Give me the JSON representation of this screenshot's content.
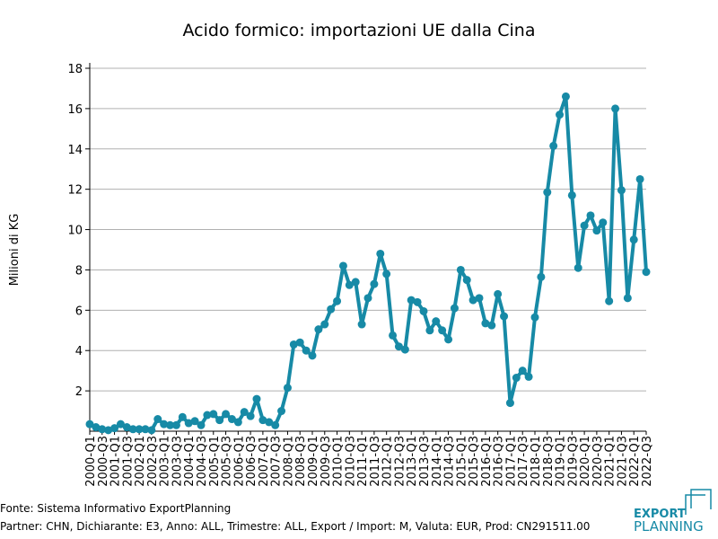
{
  "chart_data": {
    "type": "line",
    "title": "Acido formico: importazioni UE dalla Cina",
    "y_label": "Milioni di KG",
    "categories": [
      "2000-Q1",
      null,
      "2000-Q3",
      null,
      "2001-Q1",
      null,
      "2001-Q3",
      null,
      "2002-Q1",
      null,
      "2002-Q3",
      null,
      "2003-Q1",
      null,
      "2003-Q3",
      null,
      "2004-Q1",
      null,
      "2004-Q3",
      null,
      "2005-Q1",
      null,
      "2005-Q3",
      null,
      "2006-Q1",
      null,
      "2006-Q3",
      null,
      "2007-Q1",
      null,
      "2007-Q3",
      null,
      "2008-Q1",
      null,
      "2008-Q3",
      null,
      "2009-Q1",
      null,
      "2009-Q3",
      null,
      "2010-Q1",
      null,
      "2010-Q3",
      null,
      "2011-Q1",
      null,
      "2011-Q3",
      null,
      "2012-Q1",
      null,
      "2012-Q3",
      null,
      "2013-Q1",
      null,
      "2013-Q3",
      null,
      "2014-Q1",
      null,
      "2014-Q3",
      null,
      "2015-Q1",
      null,
      "2015-Q3",
      null,
      "2016-Q1",
      null,
      "2016-Q3",
      null,
      "2017-Q1",
      null,
      "2017-Q3",
      null,
      "2018-Q1",
      null,
      "2018-Q3",
      null,
      "2019-Q1",
      null,
      "2019-Q3",
      null,
      "2020-Q1",
      null,
      "2020-Q3",
      null,
      "2021-Q1",
      null,
      "2021-Q3",
      null,
      "2022-Q1",
      null,
      "2022-Q3"
    ],
    "series": [
      {
        "name": "Importazioni",
        "color": "#178aa6",
        "values": [
          0.35,
          0.2,
          0.1,
          0.05,
          0.15,
          0.35,
          0.2,
          0.1,
          0.1,
          0.1,
          0.05,
          0.6,
          0.35,
          0.3,
          0.3,
          0.7,
          0.4,
          0.5,
          0.3,
          0.8,
          0.85,
          0.55,
          0.85,
          0.6,
          0.45,
          0.95,
          0.75,
          1.6,
          0.55,
          0.45,
          0.3,
          1.0,
          2.15,
          4.3,
          4.4,
          4.0,
          3.75,
          5.05,
          5.3,
          6.05,
          6.45,
          8.2,
          7.25,
          7.4,
          5.3,
          6.6,
          7.3,
          8.8,
          7.8,
          4.75,
          4.2,
          4.05,
          6.5,
          6.4,
          5.95,
          5.0,
          5.45,
          5.0,
          4.55,
          6.1,
          8.0,
          7.5,
          6.5,
          6.6,
          5.35,
          5.25,
          6.8,
          5.7,
          1.4,
          2.65,
          3.0,
          2.7,
          5.65,
          7.65,
          11.85,
          14.15,
          15.7,
          16.6,
          11.7,
          8.1,
          10.2,
          10.7,
          9.95,
          10.35,
          6.45,
          16.0,
          11.95,
          6.6,
          9.5,
          12.5,
          7.9
        ]
      }
    ],
    "ylim": [
      0,
      18
    ],
    "yticks": [
      2,
      4,
      6,
      8,
      10,
      12,
      14,
      16,
      18
    ],
    "grid": true,
    "source": "Fonte: Sistema Informativo ExportPlanning",
    "note": "Partner: CHN, Dichiarante: E3, Anno: ALL, Trimestre: ALL, Export / Import: M, Valuta: EUR, Prod: CN291511.00",
    "logo": [
      "EXPORT",
      "PLANNING"
    ]
  }
}
